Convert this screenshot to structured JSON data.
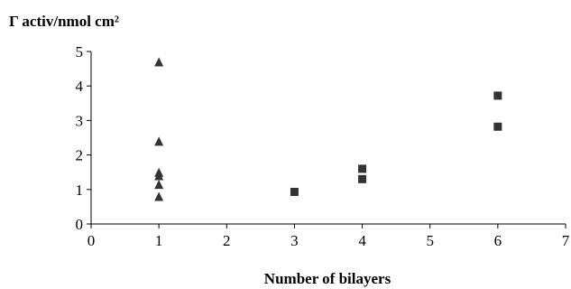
{
  "chart_data": {
    "type": "scatter",
    "title": "",
    "ylabel": "Γ activ/nmol cm²",
    "xlabel": "Number of bilayers",
    "xlim": [
      0,
      7
    ],
    "ylim": [
      0,
      5
    ],
    "x_ticks": [
      "0",
      "1",
      "2",
      "3",
      "4",
      "5",
      "6",
      "7"
    ],
    "y_ticks": [
      "0",
      "1",
      "2",
      "3",
      "4",
      "5"
    ],
    "grid": false,
    "legend": "none",
    "series": [
      {
        "marker": "triangle",
        "color": "#333333",
        "points": [
          {
            "x": 1,
            "y": 4.7
          },
          {
            "x": 1,
            "y": 2.4
          },
          {
            "x": 1,
            "y": 1.5
          },
          {
            "x": 1,
            "y": 1.4
          },
          {
            "x": 1,
            "y": 1.15
          },
          {
            "x": 1,
            "y": 0.8
          }
        ]
      },
      {
        "marker": "square",
        "color": "#333333",
        "points": [
          {
            "x": 3,
            "y": 0.93
          },
          {
            "x": 4,
            "y": 1.6
          },
          {
            "x": 4,
            "y": 1.3
          },
          {
            "x": 6,
            "y": 3.72
          },
          {
            "x": 6,
            "y": 2.82
          }
        ]
      }
    ]
  }
}
